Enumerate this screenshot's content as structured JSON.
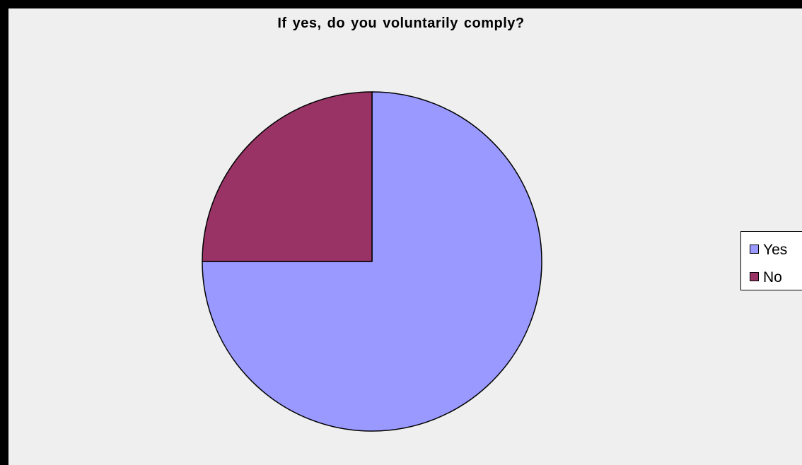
{
  "chart_data": {
    "type": "pie",
    "title": "If yes, do you voluntarily comply?",
    "categories": [
      "Yes",
      "No"
    ],
    "values": [
      75,
      25
    ],
    "colors": [
      "#9999ff",
      "#993366"
    ],
    "start_angle_deg": 0,
    "direction": "clockwise",
    "legend_position": "right"
  }
}
